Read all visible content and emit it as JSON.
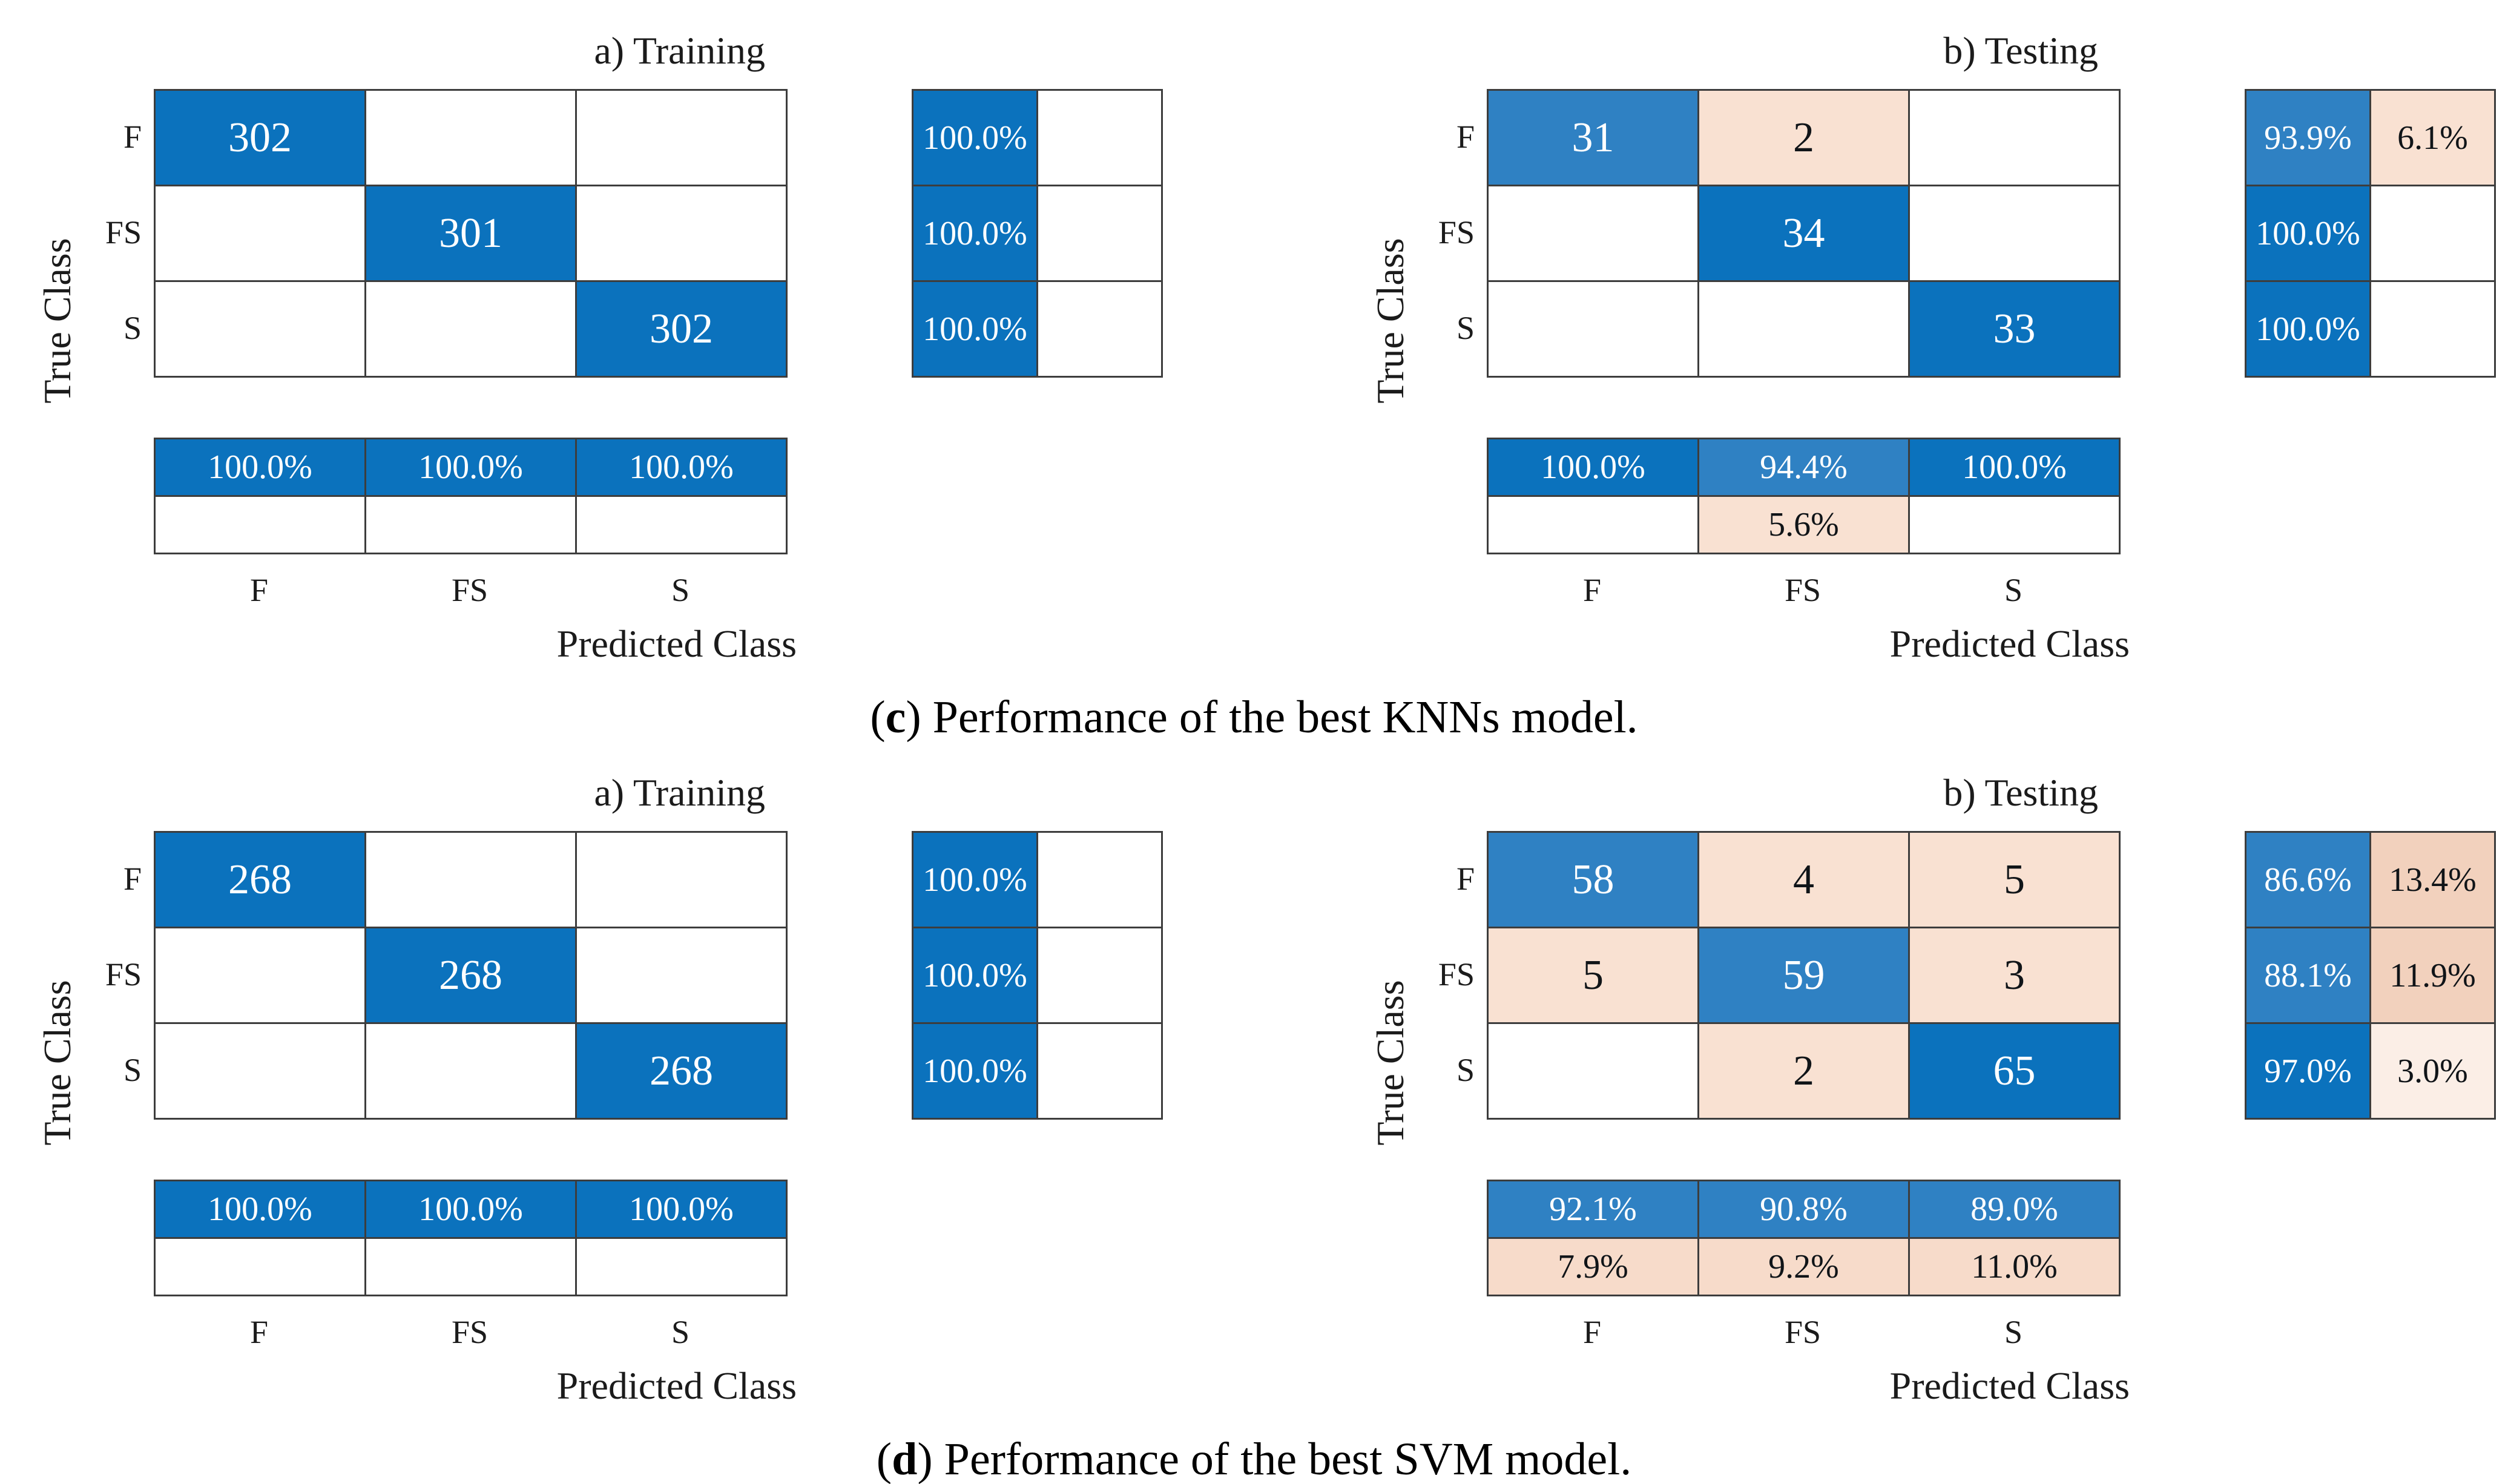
{
  "palette": {
    "blue": {
      "bg": "#0b72bd",
      "fg": "#ffffff"
    },
    "blue2": {
      "bg": "#2f81c3",
      "fg": "#ffffff"
    },
    "pink": {
      "bg": "#f9e1d2",
      "fg": "#101418"
    },
    "pink2": {
      "bg": "#f2d1bd",
      "fg": "#101418"
    },
    "pink3": {
      "bg": "#fbeee6",
      "fg": "#101418"
    },
    "pink4": {
      "bg": "#f7dbca",
      "fg": "#101418"
    },
    "white": {
      "bg": "#ffffff",
      "fg": "#101418"
    }
  },
  "chart_data": [
    {
      "type": "heatmap",
      "group": "c",
      "caption_parts": [
        "(",
        "c",
        ") Performance of the best KNNs model."
      ],
      "panels": [
        {
          "title": "a) Training",
          "y_axis_label": "True Class",
          "x_axis_label": "Predicted Class",
          "row_labels": [
            "F",
            "FS",
            "S"
          ],
          "col_labels": [
            "F",
            "FS",
            "S"
          ],
          "matrix_counts": [
            [
              "302",
              "",
              ""
            ],
            [
              "",
              "301",
              ""
            ],
            [
              "",
              "",
              "302"
            ]
          ],
          "matrix_colors": [
            [
              "blue",
              "white",
              "white"
            ],
            [
              "white",
              "blue",
              "white"
            ],
            [
              "white",
              "white",
              "blue"
            ]
          ],
          "row_summary_pct": [
            [
              "100.0%",
              ""
            ],
            [
              "100.0%",
              ""
            ],
            [
              "100.0%",
              ""
            ]
          ],
          "row_summary_colors": [
            [
              "blue",
              "white"
            ],
            [
              "blue",
              "white"
            ],
            [
              "blue",
              "white"
            ]
          ],
          "col_summary_pct": [
            [
              "100.0%",
              "100.0%",
              "100.0%"
            ],
            [
              "",
              "",
              ""
            ]
          ],
          "col_summary_colors": [
            [
              "blue",
              "blue",
              "blue"
            ],
            [
              "white",
              "white",
              "white"
            ]
          ]
        },
        {
          "title": "b) Testing",
          "y_axis_label": "True Class",
          "x_axis_label": "Predicted Class",
          "row_labels": [
            "F",
            "FS",
            "S"
          ],
          "col_labels": [
            "F",
            "FS",
            "S"
          ],
          "matrix_counts": [
            [
              "31",
              "2",
              ""
            ],
            [
              "",
              "34",
              ""
            ],
            [
              "",
              "",
              "33"
            ]
          ],
          "matrix_colors": [
            [
              "blue2",
              "pink",
              "white"
            ],
            [
              "white",
              "blue",
              "white"
            ],
            [
              "white",
              "white",
              "blue"
            ]
          ],
          "row_summary_pct": [
            [
              "93.9%",
              "6.1%"
            ],
            [
              "100.0%",
              ""
            ],
            [
              "100.0%",
              ""
            ]
          ],
          "row_summary_colors": [
            [
              "blue2",
              "pink"
            ],
            [
              "blue",
              "white"
            ],
            [
              "blue",
              "white"
            ]
          ],
          "col_summary_pct": [
            [
              "100.0%",
              "94.4%",
              "100.0%"
            ],
            [
              "",
              "5.6%",
              ""
            ]
          ],
          "col_summary_colors": [
            [
              "blue",
              "blue2",
              "blue"
            ],
            [
              "white",
              "pink",
              "white"
            ]
          ]
        }
      ]
    },
    {
      "type": "heatmap",
      "group": "d",
      "caption_parts": [
        "(",
        "d",
        ") Performance of the best SVM model."
      ],
      "panels": [
        {
          "title": "a) Training",
          "y_axis_label": "True Class",
          "x_axis_label": "Predicted Class",
          "row_labels": [
            "F",
            "FS",
            "S"
          ],
          "col_labels": [
            "F",
            "FS",
            "S"
          ],
          "matrix_counts": [
            [
              "268",
              "",
              ""
            ],
            [
              "",
              "268",
              ""
            ],
            [
              "",
              "",
              "268"
            ]
          ],
          "matrix_colors": [
            [
              "blue",
              "white",
              "white"
            ],
            [
              "white",
              "blue",
              "white"
            ],
            [
              "white",
              "white",
              "blue"
            ]
          ],
          "row_summary_pct": [
            [
              "100.0%",
              ""
            ],
            [
              "100.0%",
              ""
            ],
            [
              "100.0%",
              ""
            ]
          ],
          "row_summary_colors": [
            [
              "blue",
              "white"
            ],
            [
              "blue",
              "white"
            ],
            [
              "blue",
              "white"
            ]
          ],
          "col_summary_pct": [
            [
              "100.0%",
              "100.0%",
              "100.0%"
            ],
            [
              "",
              "",
              ""
            ]
          ],
          "col_summary_colors": [
            [
              "blue",
              "blue",
              "blue"
            ],
            [
              "white",
              "white",
              "white"
            ]
          ]
        },
        {
          "title": "b) Testing",
          "y_axis_label": "True Class",
          "x_axis_label": "Predicted Class",
          "row_labels": [
            "F",
            "FS",
            "S"
          ],
          "col_labels": [
            "F",
            "FS",
            "S"
          ],
          "matrix_counts": [
            [
              "58",
              "4",
              "5"
            ],
            [
              "5",
              "59",
              "3"
            ],
            [
              "",
              "2",
              "65"
            ]
          ],
          "matrix_colors": [
            [
              "blue2",
              "pink",
              "pink"
            ],
            [
              "pink",
              "blue2",
              "pink"
            ],
            [
              "white",
              "pink",
              "blue"
            ]
          ],
          "row_summary_pct": [
            [
              "86.6%",
              "13.4%"
            ],
            [
              "88.1%",
              "11.9%"
            ],
            [
              "97.0%",
              "3.0%"
            ]
          ],
          "row_summary_colors": [
            [
              "blue2",
              "pink2"
            ],
            [
              "blue2",
              "pink2"
            ],
            [
              "blue",
              "pink3"
            ]
          ],
          "col_summary_pct": [
            [
              "92.1%",
              "90.8%",
              "89.0%"
            ],
            [
              "7.9%",
              "9.2%",
              "11.0%"
            ]
          ],
          "col_summary_colors": [
            [
              "blue2",
              "blue2",
              "blue2"
            ],
            [
              "pink4",
              "pink4",
              "pink4"
            ]
          ]
        }
      ]
    }
  ]
}
